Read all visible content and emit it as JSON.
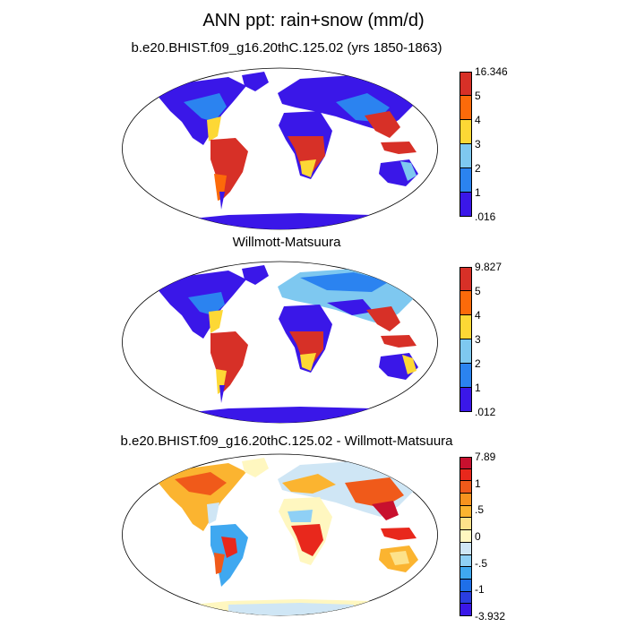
{
  "title": "ANN ppt: rain+snow (mm/d)",
  "panels": [
    {
      "subtitle": "b.e20.BHIST.f09_g16.20thC.125.02 (yrs 1850-1863)",
      "colorbar": {
        "labels": [
          "16.346",
          "5",
          "4",
          "3",
          "2",
          "1",
          ".016"
        ],
        "colors": [
          "#d73027",
          "#fc6a0a",
          "#fdd835",
          "#7ec8f0",
          "#2b83f0",
          "#3a17e8"
        ]
      }
    },
    {
      "subtitle": "Willmott-Matsuura",
      "colorbar": {
        "labels": [
          "9.827",
          "5",
          "4",
          "3",
          "2",
          "1",
          ".012"
        ],
        "colors": [
          "#d73027",
          "#fc6a0a",
          "#fdd835",
          "#7ec8f0",
          "#2b83f0",
          "#3a17e8"
        ]
      }
    },
    {
      "subtitle": "b.e20.BHIST.f09_g16.20thC.125.02 - Willmott-Matsuura",
      "colorbar": {
        "labels": [
          "7.89",
          "",
          "1",
          "",
          ".5",
          "",
          "0",
          "",
          "-.5",
          "",
          "-1",
          "",
          "-3.932"
        ],
        "colors": [
          "#c8102e",
          "#e8281c",
          "#f05a1a",
          "#f7931e",
          "#fbb430",
          "#fde28a",
          "#fff7c0",
          "#cfe6f5",
          "#8fd0f5",
          "#3fa8f0",
          "#1f6fe8",
          "#2a3ee0",
          "#3a17e8"
        ]
      }
    }
  ]
}
